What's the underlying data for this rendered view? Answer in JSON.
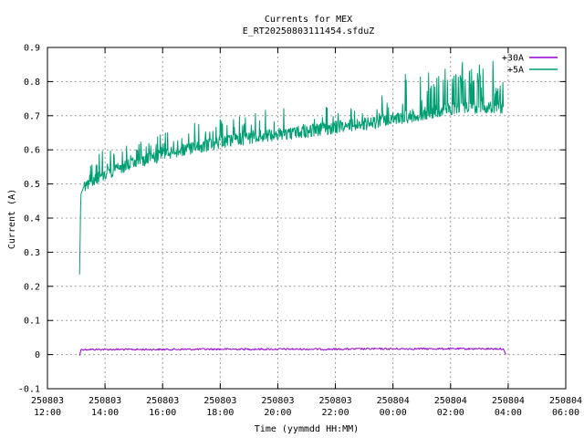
{
  "chart_data": {
    "type": "line",
    "title": "Currents for MEX",
    "subtitle": "E_RT20250803111454.sfduZ",
    "xlabel": "Time (yymmdd HH:MM)",
    "ylabel": "Current (A)",
    "x_ticks": [
      {
        "date": "250803",
        "time": "12:00"
      },
      {
        "date": "250803",
        "time": "14:00"
      },
      {
        "date": "250803",
        "time": "16:00"
      },
      {
        "date": "250803",
        "time": "18:00"
      },
      {
        "date": "250803",
        "time": "20:00"
      },
      {
        "date": "250803",
        "time": "22:00"
      },
      {
        "date": "250804",
        "time": "00:00"
      },
      {
        "date": "250804",
        "time": "02:00"
      },
      {
        "date": "250804",
        "time": "04:00"
      },
      {
        "date": "250804",
        "time": "06:00"
      }
    ],
    "xlim": [
      "2025-08-03 12:00",
      "2025-08-04 06:00"
    ],
    "ylim": [
      -0.1,
      0.9
    ],
    "y_ticks": [
      "-0.1",
      "0",
      "0.1",
      "0.2",
      "0.3",
      "0.4",
      "0.5",
      "0.6",
      "0.7",
      "0.8",
      "0.9"
    ],
    "grid": true,
    "legend_position": "top-right",
    "series": [
      {
        "name": "+30A",
        "color": "#9400d3",
        "x": [
          "2025-08-03 13:07",
          "2025-08-03 13:10",
          "2025-08-03 14:00",
          "2025-08-03 16:00",
          "2025-08-03 18:00",
          "2025-08-03 20:00",
          "2025-08-03 22:00",
          "2025-08-04 00:00",
          "2025-08-04 02:00",
          "2025-08-04 03:50",
          "2025-08-04 03:55"
        ],
        "values": [
          -0.003,
          0.015,
          0.015,
          0.015,
          0.016,
          0.016,
          0.016,
          0.017,
          0.017,
          0.017,
          0.0
        ]
      },
      {
        "name": "+5A",
        "color": "#009e73",
        "x": [
          "2025-08-03 13:07",
          "2025-08-03 13:09",
          "2025-08-03 13:10",
          "2025-08-03 13:15",
          "2025-08-03 13:30",
          "2025-08-03 14:00",
          "2025-08-03 15:00",
          "2025-08-03 16:00",
          "2025-08-03 17:00",
          "2025-08-03 18:00",
          "2025-08-03 19:00",
          "2025-08-03 20:00",
          "2025-08-03 21:00",
          "2025-08-03 22:00",
          "2025-08-03 23:00",
          "2025-08-04 00:00",
          "2025-08-04 01:00",
          "2025-08-04 02:00",
          "2025-08-04 03:00",
          "2025-08-04 03:50"
        ],
        "values": [
          0.235,
          0.43,
          0.47,
          0.49,
          0.51,
          0.53,
          0.56,
          0.585,
          0.605,
          0.62,
          0.635,
          0.645,
          0.655,
          0.665,
          0.675,
          0.69,
          0.705,
          0.72,
          0.725,
          0.725
        ]
      }
    ]
  }
}
